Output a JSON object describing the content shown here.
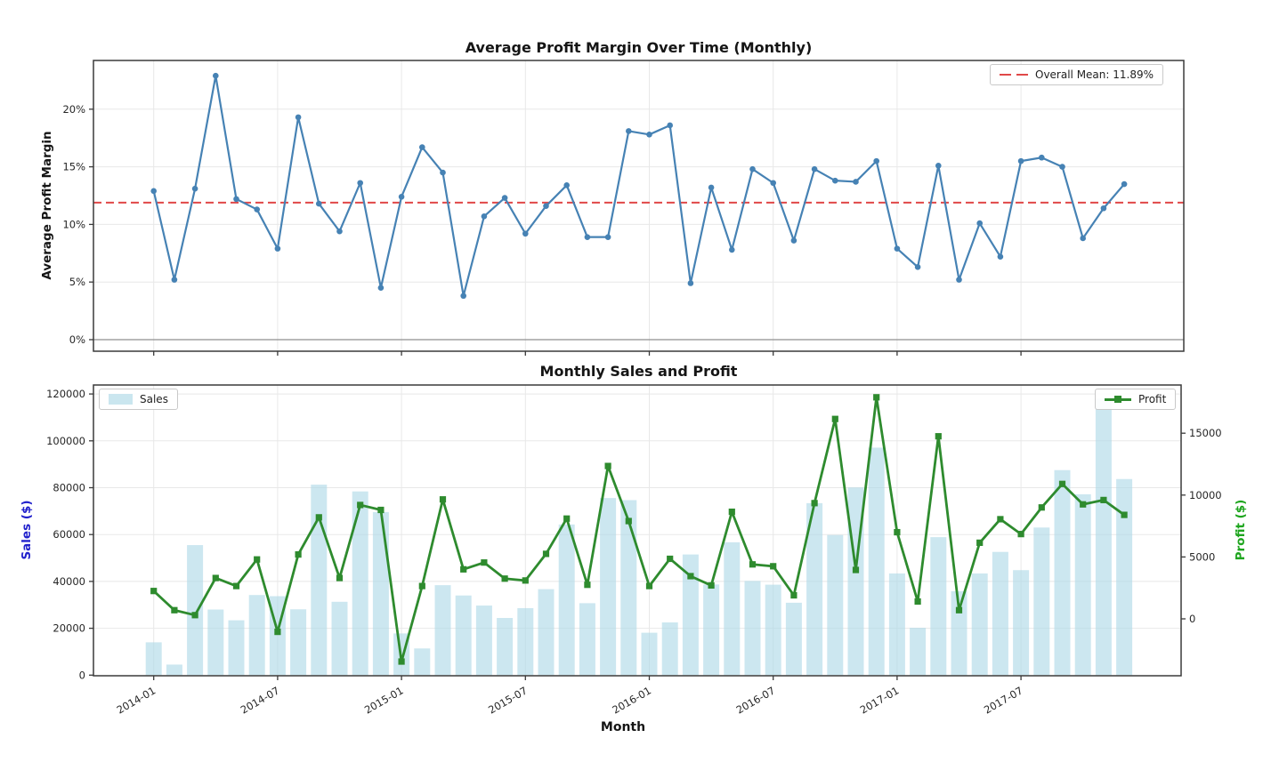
{
  "figure": {
    "background": "#ffffff"
  },
  "chart_data": [
    {
      "type": "line",
      "title": "Average Profit Margin Over Time (Monthly)",
      "ylabel": "Average Profit Margin",
      "line_color": "#4682b4",
      "grid": true,
      "legend_position": "upper right",
      "ylim": [
        -1.2,
        24.2
      ],
      "yticks": [
        0,
        5,
        10,
        15,
        20
      ],
      "ytick_labels": [
        "0%",
        "5%",
        "10%",
        "15%",
        "20%"
      ],
      "xtick_month_indices": [
        0,
        6,
        12,
        18,
        24,
        30,
        36,
        42
      ],
      "mean_line": {
        "label": "Overall Mean: 11.89%",
        "value": 11.89,
        "color": "#e04848",
        "style": "dashed"
      },
      "x": [
        "2014-01",
        "2014-02",
        "2014-03",
        "2014-04",
        "2014-05",
        "2014-06",
        "2014-07",
        "2014-08",
        "2014-09",
        "2014-10",
        "2014-11",
        "2014-12",
        "2015-01",
        "2015-02",
        "2015-03",
        "2015-04",
        "2015-05",
        "2015-06",
        "2015-07",
        "2015-08",
        "2015-09",
        "2015-10",
        "2015-11",
        "2015-12",
        "2016-01",
        "2016-02",
        "2016-03",
        "2016-04",
        "2016-05",
        "2016-06",
        "2016-07",
        "2016-08",
        "2016-09",
        "2016-10",
        "2016-11",
        "2016-12",
        "2017-01",
        "2017-02",
        "2017-03",
        "2017-04",
        "2017-05",
        "2017-06",
        "2017-07",
        "2017-08",
        "2017-09",
        "2017-10",
        "2017-11",
        "2017-12"
      ],
      "series": [
        {
          "name": "Average Profit Margin (%)",
          "values": [
            12.9,
            5.2,
            13.1,
            22.9,
            12.2,
            11.3,
            7.9,
            19.3,
            11.8,
            9.4,
            13.6,
            4.5,
            12.4,
            16.7,
            14.5,
            3.8,
            10.7,
            12.3,
            9.2,
            11.6,
            13.4,
            8.9,
            8.9,
            18.1,
            17.8,
            18.6,
            4.9,
            13.2,
            7.8,
            14.8,
            13.6,
            8.6,
            14.8,
            13.8,
            13.7,
            15.5,
            7.9,
            6.3,
            15.1,
            5.2,
            10.1,
            7.2,
            15.5,
            15.8,
            15.0,
            8.8,
            11.4,
            13.5
          ]
        }
      ]
    },
    {
      "type": "bar+line",
      "title": "Monthly Sales and Profit",
      "xlabel": "Month",
      "ylabel_left": "Sales ($)",
      "ylabel_right": "Profit ($)",
      "grid": true,
      "ylim_left": [
        0,
        124000
      ],
      "ylim_right": [
        -4550,
        18900
      ],
      "yticks_left": [
        0,
        20000,
        40000,
        60000,
        80000,
        100000,
        120000
      ],
      "yticks_right": [
        0,
        5000,
        10000,
        15000
      ],
      "xticks": {
        "month_indices": [
          0,
          6,
          12,
          18,
          24,
          30,
          36,
          42
        ],
        "labels": [
          "2014-01",
          "2014-07",
          "2015-01",
          "2015-07",
          "2016-01",
          "2016-07",
          "2017-01",
          "2017-07"
        ]
      },
      "x": [
        "2014-01",
        "2014-02",
        "2014-03",
        "2014-04",
        "2014-05",
        "2014-06",
        "2014-07",
        "2014-08",
        "2014-09",
        "2014-10",
        "2014-11",
        "2014-12",
        "2015-01",
        "2015-02",
        "2015-03",
        "2015-04",
        "2015-05",
        "2015-06",
        "2015-07",
        "2015-08",
        "2015-09",
        "2015-10",
        "2015-11",
        "2015-12",
        "2016-01",
        "2016-02",
        "2016-03",
        "2016-04",
        "2016-05",
        "2016-06",
        "2016-07",
        "2016-08",
        "2016-09",
        "2016-10",
        "2016-11",
        "2016-12",
        "2017-01",
        "2017-02",
        "2017-03",
        "2017-04",
        "2017-05",
        "2017-06",
        "2017-07",
        "2017-08",
        "2017-09",
        "2017-10",
        "2017-11",
        "2017-12"
      ],
      "series": [
        {
          "name": "Sales",
          "type": "bar",
          "axis": "left",
          "color": "#add8e6",
          "values": [
            14000,
            4500,
            55500,
            28000,
            23400,
            34200,
            33700,
            28100,
            81300,
            31300,
            78400,
            69600,
            17800,
            11400,
            38400,
            34000,
            29700,
            24400,
            28600,
            36700,
            64300,
            30700,
            75600,
            74700,
            18100,
            22500,
            51500,
            38700,
            56700,
            40200,
            38600,
            30900,
            73400,
            59800,
            80100,
            97100,
            43400,
            20200,
            58900,
            35800,
            43400,
            52600,
            44800,
            63000,
            87500,
            77200,
            118000,
            83700
          ]
        },
        {
          "name": "Profit",
          "type": "line",
          "axis": "right",
          "color": "#2e8b2e",
          "values": [
            2250,
            700,
            300,
            3300,
            2650,
            4800,
            -1050,
            5200,
            8200,
            3300,
            9200,
            8800,
            -3450,
            2650,
            9650,
            4000,
            4550,
            3250,
            3100,
            5250,
            8100,
            2750,
            12350,
            7900,
            2650,
            4850,
            3450,
            2700,
            8650,
            4400,
            4250,
            1900,
            9350,
            16150,
            3950,
            17900,
            7000,
            1400,
            14750,
            700,
            6150,
            8050,
            6850,
            9000,
            10900,
            9250,
            9600,
            8400
          ]
        }
      ]
    }
  ]
}
